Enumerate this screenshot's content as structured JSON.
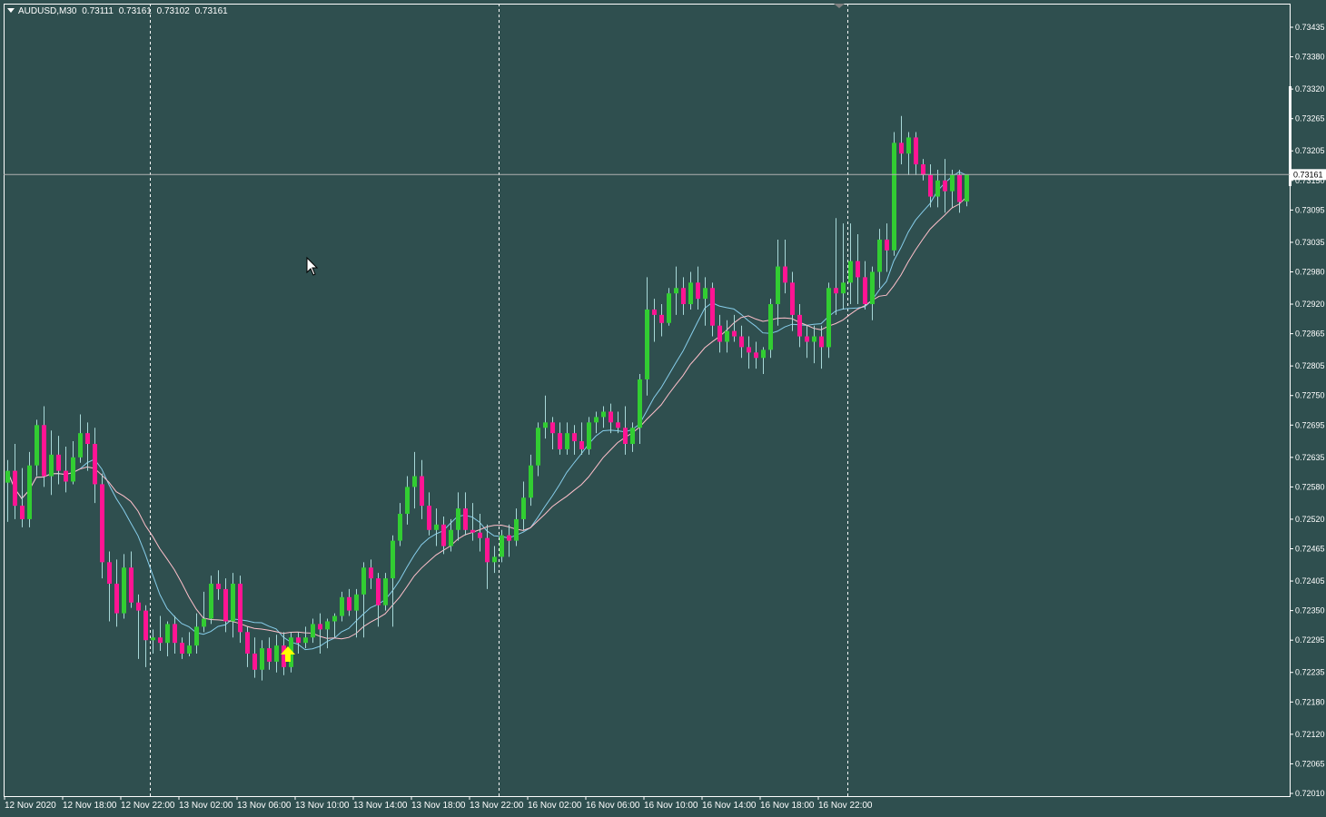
{
  "header": {
    "symbol": "AUDUSD,M30",
    "ohlc": [
      "0.73111",
      "0.73161",
      "0.73102",
      "0.73161"
    ]
  },
  "colors": {
    "background": "#2f4f4f",
    "bull": "#32cd32",
    "bear": "#ff1493",
    "wick": "#a8d8d8",
    "ma_fast": "#87ceeb",
    "ma_slow": "#ffc0cb",
    "arrow": "#ffff00",
    "text": "#ffffff",
    "grid": "#ffffff"
  },
  "current_price_label": "0.73161",
  "chart_data": {
    "type": "candlestick",
    "symbol": "AUDUSD",
    "timeframe": "M30",
    "ylim": [
      0.7201,
      0.73435
    ],
    "yticks": [
      "0.73435",
      "0.73380",
      "0.73320",
      "0.73265",
      "0.73205",
      "0.73150",
      "0.73095",
      "0.73035",
      "0.72980",
      "0.72920",
      "0.72865",
      "0.72805",
      "0.72750",
      "0.72695",
      "0.72635",
      "0.72580",
      "0.72520",
      "0.72465",
      "0.72405",
      "0.72350",
      "0.72295",
      "0.72235",
      "0.72180",
      "0.72120",
      "0.72065",
      "0.72010"
    ],
    "xticks": [
      "12 Nov 2020",
      "12 Nov 18:00",
      "12 Nov 22:00",
      "13 Nov 02:00",
      "13 Nov 06:00",
      "13 Nov 10:00",
      "13 Nov 14:00",
      "13 Nov 18:00",
      "13 Nov 22:00",
      "16 Nov 02:00",
      "16 Nov 06:00",
      "16 Nov 10:00",
      "16 Nov 14:00",
      "16 Nov 18:00",
      "16 Nov 22:00"
    ],
    "grid": "vertical dashed separators only",
    "current_price": 0.73161,
    "candles": [
      [
        0.72588,
        0.7263,
        0.72515,
        0.7261
      ],
      [
        0.7261,
        0.7266,
        0.7252,
        0.72545
      ],
      [
        0.72545,
        0.72615,
        0.72505,
        0.7252
      ],
      [
        0.7252,
        0.72645,
        0.72505,
        0.7262
      ],
      [
        0.7262,
        0.72705,
        0.726,
        0.72695
      ],
      [
        0.72695,
        0.7273,
        0.7258,
        0.726
      ],
      [
        0.726,
        0.72685,
        0.72565,
        0.7264
      ],
      [
        0.7264,
        0.72675,
        0.72585,
        0.7261
      ],
      [
        0.7261,
        0.72655,
        0.7257,
        0.7259
      ],
      [
        0.7259,
        0.72665,
        0.72585,
        0.72635
      ],
      [
        0.72635,
        0.72715,
        0.72625,
        0.7268
      ],
      [
        0.7268,
        0.727,
        0.7261,
        0.7266
      ],
      [
        0.7266,
        0.7269,
        0.7255,
        0.72585
      ],
      [
        0.72585,
        0.72605,
        0.7241,
        0.7244
      ],
      [
        0.7244,
        0.7246,
        0.7233,
        0.724
      ],
      [
        0.724,
        0.72445,
        0.7232,
        0.72345
      ],
      [
        0.72345,
        0.72455,
        0.72335,
        0.7243
      ],
      [
        0.7243,
        0.7246,
        0.72355,
        0.72365
      ],
      [
        0.72365,
        0.7238,
        0.7226,
        0.7235
      ],
      [
        0.7235,
        0.7236,
        0.72245,
        0.72295
      ],
      [
        0.72295,
        0.72315,
        0.7227,
        0.723
      ],
      [
        0.723,
        0.7234,
        0.72275,
        0.7229
      ],
      [
        0.7229,
        0.7233,
        0.72265,
        0.72325
      ],
      [
        0.72325,
        0.7234,
        0.7227,
        0.7229
      ],
      [
        0.7229,
        0.723,
        0.7226,
        0.7227
      ],
      [
        0.7227,
        0.7231,
        0.72265,
        0.72285
      ],
      [
        0.72285,
        0.72345,
        0.7227,
        0.7232
      ],
      [
        0.7232,
        0.72385,
        0.7231,
        0.72335
      ],
      [
        0.72335,
        0.72415,
        0.72325,
        0.724
      ],
      [
        0.724,
        0.72425,
        0.7237,
        0.7239
      ],
      [
        0.7239,
        0.7241,
        0.7231,
        0.7233
      ],
      [
        0.7233,
        0.7242,
        0.723,
        0.724
      ],
      [
        0.724,
        0.72415,
        0.7229,
        0.7231
      ],
      [
        0.7231,
        0.7232,
        0.72245,
        0.7227
      ],
      [
        0.7227,
        0.723,
        0.72225,
        0.7224
      ],
      [
        0.7224,
        0.72295,
        0.7222,
        0.7228
      ],
      [
        0.7228,
        0.723,
        0.7224,
        0.72255
      ],
      [
        0.72255,
        0.72305,
        0.72235,
        0.72285
      ],
      [
        0.72285,
        0.7231,
        0.7223,
        0.72245
      ],
      [
        0.72245,
        0.7231,
        0.72235,
        0.723
      ],
      [
        0.723,
        0.7231,
        0.7227,
        0.7229
      ],
      [
        0.7229,
        0.7232,
        0.7228,
        0.723
      ],
      [
        0.723,
        0.72335,
        0.7229,
        0.72325
      ],
      [
        0.72325,
        0.72345,
        0.7227,
        0.72315
      ],
      [
        0.72315,
        0.72335,
        0.7228,
        0.7233
      ],
      [
        0.7233,
        0.72345,
        0.723,
        0.7234
      ],
      [
        0.7234,
        0.72385,
        0.7233,
        0.72375
      ],
      [
        0.72375,
        0.7239,
        0.7234,
        0.7235
      ],
      [
        0.7235,
        0.7239,
        0.723,
        0.7238
      ],
      [
        0.7238,
        0.7244,
        0.723,
        0.7243
      ],
      [
        0.7243,
        0.72445,
        0.7239,
        0.7241
      ],
      [
        0.7241,
        0.7242,
        0.7232,
        0.7236
      ],
      [
        0.7236,
        0.7242,
        0.7235,
        0.7241
      ],
      [
        0.7241,
        0.7249,
        0.7232,
        0.7248
      ],
      [
        0.7248,
        0.7255,
        0.7247,
        0.7253
      ],
      [
        0.7253,
        0.726,
        0.7251,
        0.7258
      ],
      [
        0.7258,
        0.72645,
        0.7254,
        0.726
      ],
      [
        0.726,
        0.7263,
        0.7252,
        0.72545
      ],
      [
        0.72545,
        0.7257,
        0.7249,
        0.725
      ],
      [
        0.725,
        0.7254,
        0.7247,
        0.7251
      ],
      [
        0.7251,
        0.72525,
        0.72455,
        0.7247
      ],
      [
        0.7247,
        0.7252,
        0.7246,
        0.725
      ],
      [
        0.725,
        0.7257,
        0.7248,
        0.7254
      ],
      [
        0.7254,
        0.7257,
        0.7249,
        0.725
      ],
      [
        0.725,
        0.7255,
        0.7248,
        0.72495
      ],
      [
        0.72495,
        0.7253,
        0.7246,
        0.72485
      ],
      [
        0.72485,
        0.7251,
        0.7239,
        0.7244
      ],
      [
        0.7244,
        0.7247,
        0.7242,
        0.7245
      ],
      [
        0.7245,
        0.725,
        0.7244,
        0.7249
      ],
      [
        0.7249,
        0.7251,
        0.7245,
        0.7248
      ],
      [
        0.7248,
        0.7254,
        0.7247,
        0.7252
      ],
      [
        0.7252,
        0.7259,
        0.725,
        0.7256
      ],
      [
        0.7256,
        0.7264,
        0.72545,
        0.7262
      ],
      [
        0.7262,
        0.727,
        0.726,
        0.7269
      ],
      [
        0.7269,
        0.7275,
        0.7267,
        0.727
      ],
      [
        0.727,
        0.7271,
        0.7265,
        0.7268
      ],
      [
        0.7268,
        0.727,
        0.7264,
        0.7265
      ],
      [
        0.7265,
        0.727,
        0.7264,
        0.7268
      ],
      [
        0.7268,
        0.72695,
        0.7264,
        0.72665
      ],
      [
        0.72665,
        0.727,
        0.7264,
        0.7265
      ],
      [
        0.7265,
        0.7271,
        0.7264,
        0.727
      ],
      [
        0.727,
        0.7272,
        0.7268,
        0.7271
      ],
      [
        0.7271,
        0.7273,
        0.7269,
        0.7272
      ],
      [
        0.7272,
        0.72735,
        0.7268,
        0.727
      ],
      [
        0.727,
        0.7272,
        0.7268,
        0.7269
      ],
      [
        0.7269,
        0.7273,
        0.7264,
        0.7266
      ],
      [
        0.7266,
        0.727,
        0.72645,
        0.7269
      ],
      [
        0.7269,
        0.7279,
        0.7266,
        0.7278
      ],
      [
        0.7278,
        0.7297,
        0.7275,
        0.7291
      ],
      [
        0.7291,
        0.7293,
        0.7285,
        0.729
      ],
      [
        0.729,
        0.7292,
        0.7286,
        0.72885
      ],
      [
        0.72885,
        0.7295,
        0.7288,
        0.7294
      ],
      [
        0.7294,
        0.7299,
        0.729,
        0.7295
      ],
      [
        0.7295,
        0.7297,
        0.729,
        0.7292
      ],
      [
        0.7292,
        0.7298,
        0.7291,
        0.7296
      ],
      [
        0.7296,
        0.7299,
        0.7291,
        0.7293
      ],
      [
        0.7293,
        0.7297,
        0.7288,
        0.7295
      ],
      [
        0.7295,
        0.7296,
        0.7286,
        0.7288
      ],
      [
        0.7288,
        0.729,
        0.7283,
        0.7285
      ],
      [
        0.7285,
        0.7289,
        0.7283,
        0.7287
      ],
      [
        0.7287,
        0.729,
        0.7285,
        0.7286
      ],
      [
        0.7286,
        0.7288,
        0.7282,
        0.7284
      ],
      [
        0.7284,
        0.7286,
        0.728,
        0.7283
      ],
      [
        0.7283,
        0.7285,
        0.728,
        0.7282
      ],
      [
        0.7282,
        0.7284,
        0.7279,
        0.72835
      ],
      [
        0.72835,
        0.7293,
        0.7282,
        0.7292
      ],
      [
        0.7292,
        0.7304,
        0.7288,
        0.7299
      ],
      [
        0.7299,
        0.7304,
        0.7294,
        0.7296
      ],
      [
        0.7296,
        0.7298,
        0.7287,
        0.729
      ],
      [
        0.729,
        0.7292,
        0.7284,
        0.7286
      ],
      [
        0.7286,
        0.7288,
        0.7282,
        0.7285
      ],
      [
        0.7285,
        0.7288,
        0.7281,
        0.7286
      ],
      [
        0.7286,
        0.7288,
        0.728,
        0.7284
      ],
      [
        0.7284,
        0.7296,
        0.7282,
        0.7295
      ],
      [
        0.7295,
        0.7308,
        0.729,
        0.7294
      ],
      [
        0.7294,
        0.7307,
        0.7291,
        0.7296
      ],
      [
        0.7296,
        0.7307,
        0.7292,
        0.73
      ],
      [
        0.73,
        0.7305,
        0.7292,
        0.7297
      ],
      [
        0.7297,
        0.73,
        0.7291,
        0.7292
      ],
      [
        0.7292,
        0.7299,
        0.7289,
        0.7298
      ],
      [
        0.7298,
        0.7306,
        0.7295,
        0.7304
      ],
      [
        0.7304,
        0.7307,
        0.7298,
        0.7302
      ],
      [
        0.7302,
        0.7324,
        0.7301,
        0.7322
      ],
      [
        0.7322,
        0.7327,
        0.7318,
        0.732
      ],
      [
        0.732,
        0.7324,
        0.7316,
        0.7323
      ],
      [
        0.7323,
        0.7324,
        0.7316,
        0.7318
      ],
      [
        0.7318,
        0.7319,
        0.7315,
        0.7316
      ],
      [
        0.7316,
        0.7318,
        0.731,
        0.7312
      ],
      [
        0.7312,
        0.7317,
        0.731,
        0.7315
      ],
      [
        0.7315,
        0.7319,
        0.7309,
        0.7313
      ],
      [
        0.7313,
        0.7317,
        0.731,
        0.7316
      ],
      [
        0.7316,
        0.7317,
        0.7309,
        0.7311
      ],
      [
        0.73111,
        0.73161,
        0.73102,
        0.73161
      ]
    ]
  }
}
